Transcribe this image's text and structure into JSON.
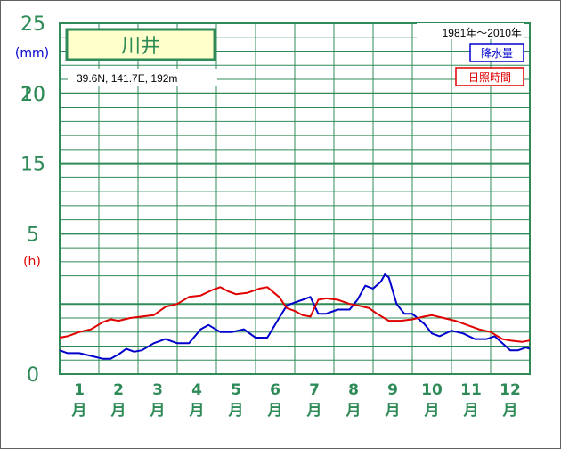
{
  "chart_data": {
    "type": "line",
    "title": "川井",
    "station_info": "39.6N,  141.7E,  192m",
    "period": "1981年〜2010年",
    "y_left_unit": "(mm)",
    "y_right_unit": "(h)",
    "yticks_precip": [
      "25",
      "20",
      "15"
    ],
    "yticks_sun": [
      "10",
      "5",
      "0"
    ],
    "ylim": [
      0,
      25
    ],
    "categories": [
      "1月",
      "2月",
      "3月",
      "4月",
      "5月",
      "6月",
      "7月",
      "8月",
      "9月",
      "10月",
      "11月",
      "12月"
    ],
    "month_numbers": [
      "1",
      "2",
      "3",
      "4",
      "5",
      "6",
      "7",
      "8",
      "9",
      "10",
      "11",
      "12"
    ],
    "month_char": "月",
    "series": [
      {
        "name": "降水量",
        "color": "#0000cc",
        "points": [
          [
            0.5,
            1.7
          ],
          [
            0.7,
            1.5
          ],
          [
            1.0,
            1.5
          ],
          [
            1.3,
            1.3
          ],
          [
            1.6,
            1.1
          ],
          [
            1.8,
            1.1
          ],
          [
            2.0,
            1.4
          ],
          [
            2.2,
            1.8
          ],
          [
            2.4,
            1.6
          ],
          [
            2.6,
            1.7
          ],
          [
            2.9,
            2.2
          ],
          [
            3.2,
            2.5
          ],
          [
            3.5,
            2.2
          ],
          [
            3.8,
            2.2
          ],
          [
            4.1,
            3.2
          ],
          [
            4.3,
            3.5
          ],
          [
            4.6,
            3.0
          ],
          [
            4.9,
            3.0
          ],
          [
            5.2,
            3.2
          ],
          [
            5.5,
            2.6
          ],
          [
            5.8,
            2.6
          ],
          [
            6.1,
            4.0
          ],
          [
            6.3,
            4.9
          ],
          [
            6.5,
            5.1
          ],
          [
            6.7,
            5.3
          ],
          [
            6.9,
            5.5
          ],
          [
            7.1,
            4.3
          ],
          [
            7.3,
            4.3
          ],
          [
            7.6,
            4.6
          ],
          [
            7.9,
            4.6
          ],
          [
            8.1,
            5.3
          ],
          [
            8.3,
            6.3
          ],
          [
            8.5,
            6.1
          ],
          [
            8.7,
            6.6
          ],
          [
            8.8,
            7.1
          ],
          [
            8.9,
            6.9
          ],
          [
            9.1,
            5.0
          ],
          [
            9.3,
            4.3
          ],
          [
            9.5,
            4.3
          ],
          [
            9.8,
            3.6
          ],
          [
            10.0,
            2.9
          ],
          [
            10.2,
            2.7
          ],
          [
            10.5,
            3.1
          ],
          [
            10.8,
            2.9
          ],
          [
            11.1,
            2.5
          ],
          [
            11.4,
            2.5
          ],
          [
            11.6,
            2.7
          ],
          [
            11.8,
            2.2
          ],
          [
            12.0,
            1.7
          ],
          [
            12.2,
            1.7
          ],
          [
            12.4,
            1.9
          ],
          [
            12.5,
            1.8
          ]
        ]
      },
      {
        "name": "日照時間",
        "color": "#e00000",
        "points": [
          [
            0.5,
            2.6
          ],
          [
            0.7,
            2.7
          ],
          [
            1.0,
            3.0
          ],
          [
            1.3,
            3.2
          ],
          [
            1.6,
            3.7
          ],
          [
            1.8,
            3.9
          ],
          [
            2.0,
            3.8
          ],
          [
            2.3,
            4.0
          ],
          [
            2.6,
            4.1
          ],
          [
            2.9,
            4.2
          ],
          [
            3.2,
            4.8
          ],
          [
            3.5,
            5.0
          ],
          [
            3.8,
            5.5
          ],
          [
            4.1,
            5.6
          ],
          [
            4.4,
            6.0
          ],
          [
            4.6,
            6.2
          ],
          [
            4.8,
            5.9
          ],
          [
            5.0,
            5.7
          ],
          [
            5.3,
            5.8
          ],
          [
            5.6,
            6.1
          ],
          [
            5.8,
            6.2
          ],
          [
            6.1,
            5.5
          ],
          [
            6.3,
            4.7
          ],
          [
            6.5,
            4.5
          ],
          [
            6.7,
            4.2
          ],
          [
            6.9,
            4.1
          ],
          [
            7.1,
            5.3
          ],
          [
            7.3,
            5.4
          ],
          [
            7.6,
            5.3
          ],
          [
            7.9,
            5.0
          ],
          [
            8.1,
            4.9
          ],
          [
            8.4,
            4.7
          ],
          [
            8.6,
            4.3
          ],
          [
            8.9,
            3.8
          ],
          [
            9.2,
            3.8
          ],
          [
            9.5,
            3.9
          ],
          [
            9.8,
            4.1
          ],
          [
            10.0,
            4.2
          ],
          [
            10.3,
            4.0
          ],
          [
            10.6,
            3.8
          ],
          [
            10.9,
            3.5
          ],
          [
            11.2,
            3.2
          ],
          [
            11.5,
            3.0
          ],
          [
            11.8,
            2.5
          ],
          [
            12.0,
            2.4
          ],
          [
            12.3,
            2.3
          ],
          [
            12.5,
            2.4
          ]
        ]
      }
    ]
  },
  "colors": {
    "frame": "#2e8b57",
    "grid": "#2e8b57",
    "title_bg": "#ffffcc",
    "precip": "#0000cc",
    "sun": "#e00000"
  }
}
